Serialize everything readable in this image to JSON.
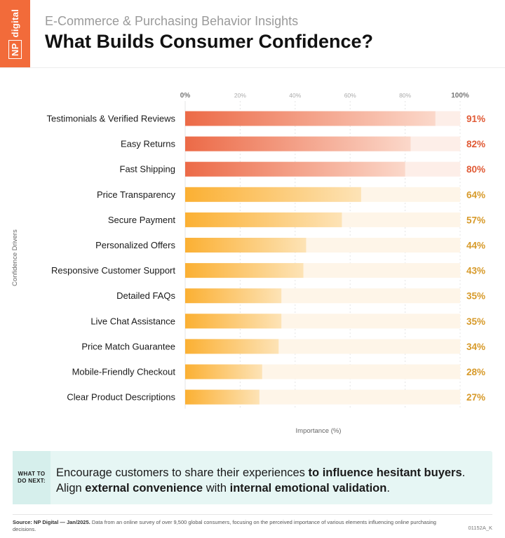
{
  "brand": {
    "logo_box": "NP",
    "logo_word": "digital"
  },
  "header": {
    "subtitle": "E-Commerce & Purchasing Behavior Insights",
    "title": "What Builds Consumer Confidence?"
  },
  "chart_data": {
    "type": "bar",
    "orientation": "horizontal",
    "categories": [
      "Testimonials & Verified Reviews",
      "Easy Returns",
      "Fast Shipping",
      "Price Transparency",
      "Secure Payment",
      "Personalized Offers",
      "Responsive Customer Support",
      "Detailed FAQs",
      "Live Chat Assistance",
      "Price Match Guarantee",
      "Mobile-Friendly Checkout",
      "Clear Product Descriptions"
    ],
    "values": [
      91,
      82,
      80,
      64,
      57,
      44,
      43,
      35,
      35,
      34,
      28,
      27
    ],
    "value_labels": [
      "91%",
      "82%",
      "80%",
      "64%",
      "57%",
      "44%",
      "43%",
      "35%",
      "35%",
      "34%",
      "28%",
      "27%"
    ],
    "xlim": [
      0,
      100
    ],
    "x_ticks": [
      "0%",
      "20%",
      "40%",
      "60%",
      "80%",
      "100%"
    ],
    "x_tick_values": [
      0,
      20,
      40,
      60,
      80,
      100
    ],
    "xlabel": "Importance (%)",
    "ylabel": "Confidence Drivers",
    "grid": true,
    "colors": {
      "top_group": "#ec6a47",
      "top_group_light": "#fbd8ca",
      "top_group_track": "#fdeee8",
      "top_group_label": "#e05a35",
      "rest": "#fbb033",
      "rest_light": "#fde3b6",
      "rest_track": "#fef5e8",
      "rest_label": "#d79a2a"
    },
    "highlight_top_n": 3
  },
  "callout": {
    "tag_line1": "WHAT TO",
    "tag_line2": "DO NEXT:",
    "line1_plain": "Encourage customers to share their experiences ",
    "line1_bold": "to influence hesitant buyers",
    "line1_end": ".",
    "line2_a": "Align ",
    "line2_bold1": "external convenience",
    "line2_b": " with ",
    "line2_bold2": "internal emotional validation",
    "line2_end": "."
  },
  "footer": {
    "source_bold": "Source: NP Digital — Jan/2025.",
    "source_text": " Data from an online survey of over 9,500 global consumers, focusing on the perceived importance of various elements influencing online purchasing decisions.",
    "code": "01152A_K"
  }
}
